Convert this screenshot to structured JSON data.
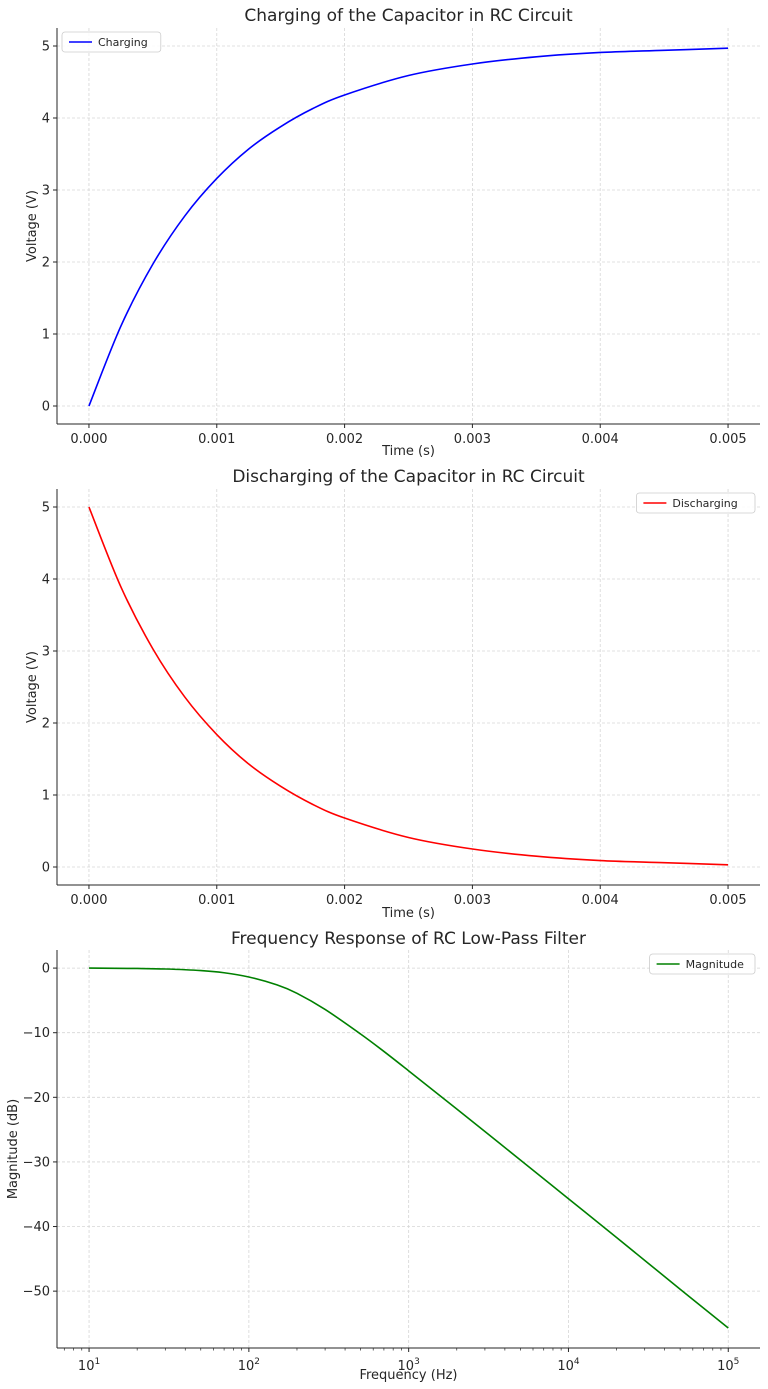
{
  "chart_data": [
    {
      "type": "line",
      "title": "Charging of the Capacitor in RC Circuit",
      "xlabel": "Time (s)",
      "ylabel": "Voltage (V)",
      "xlim": [
        -0.00025,
        0.00525
      ],
      "ylim": [
        -0.25,
        5.25
      ],
      "x_ticks": [
        0.0,
        0.001,
        0.002,
        0.003,
        0.004,
        0.005
      ],
      "x_tick_labels": [
        "0.000",
        "0.001",
        "0.002",
        "0.003",
        "0.004",
        "0.005"
      ],
      "y_ticks": [
        0,
        1,
        2,
        3,
        4,
        5
      ],
      "y_tick_labels": [
        "0",
        "1",
        "2",
        "3",
        "4",
        "5"
      ],
      "x_scale": "linear",
      "grid": true,
      "legend": "upper left",
      "series": [
        {
          "name": "Charging",
          "color": "#0000ff",
          "x": [
            0.0,
            0.00025,
            0.0005,
            0.00075,
            0.001,
            0.00125,
            0.0015,
            0.00175,
            0.002,
            0.0025,
            0.003,
            0.0035,
            0.004,
            0.0045,
            0.005
          ],
          "y": [
            0.0,
            1.11,
            1.97,
            2.64,
            3.16,
            3.57,
            3.88,
            4.13,
            4.32,
            4.59,
            4.75,
            4.85,
            4.91,
            4.94,
            4.97
          ]
        }
      ]
    },
    {
      "type": "line",
      "title": "Discharging of the Capacitor in RC Circuit",
      "xlabel": "Time (s)",
      "ylabel": "Voltage (V)",
      "xlim": [
        -0.00025,
        0.00525
      ],
      "ylim": [
        -0.25,
        5.25
      ],
      "x_ticks": [
        0.0,
        0.001,
        0.002,
        0.003,
        0.004,
        0.005
      ],
      "x_tick_labels": [
        "0.000",
        "0.001",
        "0.002",
        "0.003",
        "0.004",
        "0.005"
      ],
      "y_ticks": [
        0,
        1,
        2,
        3,
        4,
        5
      ],
      "y_tick_labels": [
        "0",
        "1",
        "2",
        "3",
        "4",
        "5"
      ],
      "x_scale": "linear",
      "grid": true,
      "legend": "upper right",
      "series": [
        {
          "name": "Discharging",
          "color": "#ff0000",
          "x": [
            0.0,
            0.00025,
            0.0005,
            0.00075,
            0.001,
            0.00125,
            0.0015,
            0.00175,
            0.002,
            0.0025,
            0.003,
            0.0035,
            0.004,
            0.0045,
            0.005
          ],
          "y": [
            5.0,
            3.89,
            3.03,
            2.36,
            1.84,
            1.43,
            1.12,
            0.87,
            0.68,
            0.41,
            0.25,
            0.15,
            0.09,
            0.06,
            0.03
          ]
        }
      ]
    },
    {
      "type": "line",
      "title": "Frequency Response of RC Low-Pass Filter",
      "xlabel": "Frequency (Hz)",
      "ylabel": "Magnitude (dB)",
      "xlim": [
        6.3,
        158000
      ],
      "ylim": [
        -58.8,
        2.8
      ],
      "x_ticks": [
        10,
        100,
        1000,
        10000,
        100000
      ],
      "x_tick_labels": [
        {
          "base": "10",
          "exp": "1"
        },
        {
          "base": "10",
          "exp": "2"
        },
        {
          "base": "10",
          "exp": "3"
        },
        {
          "base": "10",
          "exp": "4"
        },
        {
          "base": "10",
          "exp": "5"
        }
      ],
      "y_ticks": [
        0,
        -10,
        -20,
        -30,
        -40,
        -50
      ],
      "y_tick_labels": [
        "0",
        "−10",
        "−20",
        "−30",
        "−40",
        "−50"
      ],
      "x_scale": "log",
      "grid": true,
      "legend": "upper right",
      "series": [
        {
          "name": "Magnitude",
          "color": "#008000",
          "x": [
            10,
            20,
            30,
            50,
            70,
            100,
            150,
            200,
            300,
            500,
            700,
            1000,
            2000,
            5000,
            10000,
            20000,
            50000,
            100000
          ],
          "y": [
            0.0,
            -0.06,
            -0.14,
            -0.38,
            -0.72,
            -1.38,
            -2.6,
            -3.9,
            -6.4,
            -10.2,
            -12.9,
            -15.9,
            -21.8,
            -29.7,
            -35.7,
            -41.7,
            -49.7,
            -55.7
          ]
        }
      ]
    }
  ]
}
